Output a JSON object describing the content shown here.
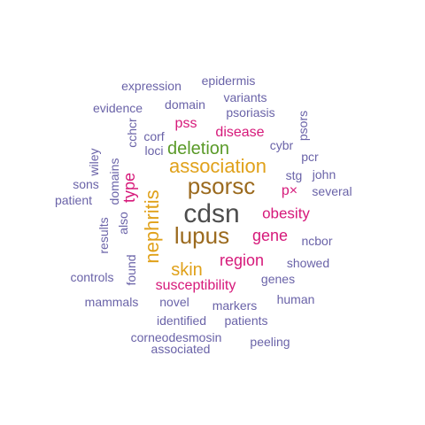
{
  "colors": {
    "dark": "#4d4d4d",
    "brown": "#9b6a1e",
    "gold": "#e0a11a",
    "green": "#5a9a28",
    "magenta": "#d6197a",
    "purple": "#6a63a8"
  },
  "words": [
    {
      "text": "cdsn",
      "color": "dark"
    },
    {
      "text": "lupus",
      "color": "brown"
    },
    {
      "text": "psorsc",
      "color": "brown"
    },
    {
      "text": "nephritis",
      "color": "gold"
    },
    {
      "text": "association",
      "color": "gold"
    },
    {
      "text": "skin",
      "color": "gold"
    },
    {
      "text": "deletion",
      "color": "green"
    },
    {
      "text": "type",
      "color": "magenta"
    },
    {
      "text": "region",
      "color": "magenta"
    },
    {
      "text": "gene",
      "color": "magenta"
    },
    {
      "text": "obesity",
      "color": "magenta"
    },
    {
      "text": "susceptibility",
      "color": "magenta"
    },
    {
      "text": "disease",
      "color": "magenta"
    },
    {
      "text": "pss",
      "color": "magenta"
    },
    {
      "text": "p×",
      "color": "magenta"
    },
    {
      "text": "expression",
      "color": "purple"
    },
    {
      "text": "epidermis",
      "color": "purple"
    },
    {
      "text": "variants",
      "color": "purple"
    },
    {
      "text": "evidence",
      "color": "purple"
    },
    {
      "text": "domain",
      "color": "purple"
    },
    {
      "text": "psoriasis",
      "color": "purple"
    },
    {
      "text": "psors",
      "color": "purple"
    },
    {
      "text": "cchcr",
      "color": "purple"
    },
    {
      "text": "corf",
      "color": "purple"
    },
    {
      "text": "loci",
      "color": "purple"
    },
    {
      "text": "cybr",
      "color": "purple"
    },
    {
      "text": "pcr",
      "color": "purple"
    },
    {
      "text": "wiley",
      "color": "purple"
    },
    {
      "text": "domains",
      "color": "purple"
    },
    {
      "text": "stg",
      "color": "purple"
    },
    {
      "text": "john",
      "color": "purple"
    },
    {
      "text": "sons",
      "color": "purple"
    },
    {
      "text": "several",
      "color": "purple"
    },
    {
      "text": "patient",
      "color": "purple"
    },
    {
      "text": "also",
      "color": "purple"
    },
    {
      "text": "results",
      "color": "purple"
    },
    {
      "text": "ncbor",
      "color": "purple"
    },
    {
      "text": "found",
      "color": "purple"
    },
    {
      "text": "showed",
      "color": "purple"
    },
    {
      "text": "controls",
      "color": "purple"
    },
    {
      "text": "genes",
      "color": "purple"
    },
    {
      "text": "mammals",
      "color": "purple"
    },
    {
      "text": "novel",
      "color": "purple"
    },
    {
      "text": "markers",
      "color": "purple"
    },
    {
      "text": "human",
      "color": "purple"
    },
    {
      "text": "identified",
      "color": "purple"
    },
    {
      "text": "patients",
      "color": "purple"
    },
    {
      "text": "corneodesmosin",
      "color": "purple"
    },
    {
      "text": "peeling",
      "color": "purple"
    },
    {
      "text": "associated",
      "color": "purple"
    }
  ]
}
